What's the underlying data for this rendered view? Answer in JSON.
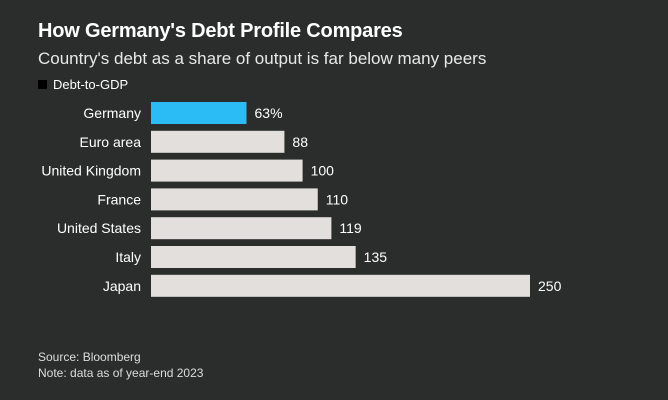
{
  "chart_data": {
    "type": "bar",
    "orientation": "horizontal",
    "title": "How Germany's Debt Profile Compares",
    "subtitle": "Country's debt as a share of output is far below many peers",
    "legend": [
      "Debt-to-GDP"
    ],
    "categories": [
      "Germany",
      "Euro area",
      "United Kingdom",
      "France",
      "United States",
      "Italy",
      "Japan"
    ],
    "values": [
      63,
      88,
      100,
      110,
      119,
      135,
      250
    ],
    "value_labels": [
      "63%",
      "88",
      "100",
      "110",
      "119",
      "135",
      "250"
    ],
    "highlight_category": "Germany",
    "colors": {
      "highlight": "#2bbcf5",
      "default": "#e2dfdc",
      "background": "#2b2d2c"
    },
    "xlim": [
      0,
      250
    ],
    "grid": false
  },
  "source": "Source: Bloomberg",
  "note": "Note: data as of year-end 2023"
}
